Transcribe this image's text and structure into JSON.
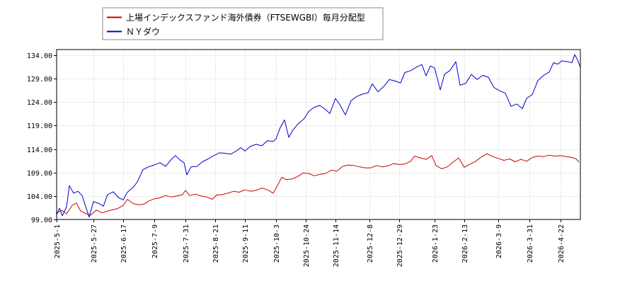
{
  "chart_data": {
    "type": "line",
    "legend": {
      "placement": "top-left",
      "entries": [
        {
          "name": "上場インデックスファンド海外債券（FTSEWGBI）毎月分配型",
          "color": "#cc0000"
        },
        {
          "name": "ＮＹダウ",
          "color": "#0000cc"
        }
      ]
    },
    "y_ticks": [
      "99.00",
      "104.00",
      "109.00",
      "114.00",
      "119.00",
      "124.00",
      "129.00",
      "134.00"
    ],
    "ylim": [
      99,
      135.2
    ],
    "x_ticks": [
      {
        "label": "2025-5-1",
        "date": "2025-05-01"
      },
      {
        "label": "2025-5-27",
        "date": "2025-05-27"
      },
      {
        "label": "2025-6-17",
        "date": "2025-06-17"
      },
      {
        "label": "2025-7-9",
        "date": "2025-07-09"
      },
      {
        "label": "2025-7-31",
        "date": "2025-07-31"
      },
      {
        "label": "2025-8-21",
        "date": "2025-08-21"
      },
      {
        "label": "2025-9-11",
        "date": "2025-09-11"
      },
      {
        "label": "2025-10-3",
        "date": "2025-10-03"
      },
      {
        "label": "2025-10-24",
        "date": "2025-10-24"
      },
      {
        "label": "2025-11-14",
        "date": "2025-11-14"
      },
      {
        "label": "2025-12-8",
        "date": "2025-12-08"
      },
      {
        "label": "2025-12-29",
        "date": "2025-12-29"
      },
      {
        "label": "2026-1-23",
        "date": "2026-01-23"
      },
      {
        "label": "2026-2-13",
        "date": "2026-02-13"
      },
      {
        "label": "2026-3-9",
        "date": "2026-03-09"
      },
      {
        "label": "2026-3-31",
        "date": "2026-03-31"
      },
      {
        "label": "2026-4-22",
        "date": "2026-04-22"
      }
    ],
    "xlim": [
      "2025-05-01",
      "2026-05-06"
    ],
    "grid": true,
    "series": [
      {
        "name": "上場インデックスファンド海外債券（FTSEWGBI）毎月分配型",
        "color": "#cc0000",
        "points": [
          [
            "2025-05-01",
            100.5
          ],
          [
            "2025-05-05",
            100.9
          ],
          [
            "2025-05-08",
            100.2
          ],
          [
            "2025-05-12",
            102.0
          ],
          [
            "2025-05-15",
            102.5
          ],
          [
            "2025-05-18",
            100.8
          ],
          [
            "2025-05-22",
            100.2
          ],
          [
            "2025-05-25",
            99.9
          ],
          [
            "2025-05-29",
            101.0
          ],
          [
            "2025-06-02",
            100.4
          ],
          [
            "2025-06-06",
            100.8
          ],
          [
            "2025-06-10",
            101.1
          ],
          [
            "2025-06-13",
            101.3
          ],
          [
            "2025-06-17",
            102.0
          ],
          [
            "2025-06-20",
            103.3
          ],
          [
            "2025-06-24",
            102.4
          ],
          [
            "2025-06-28",
            102.1
          ],
          [
            "2025-07-02",
            102.3
          ],
          [
            "2025-07-05",
            102.9
          ],
          [
            "2025-07-09",
            103.4
          ],
          [
            "2025-07-13",
            103.6
          ],
          [
            "2025-07-17",
            104.1
          ],
          [
            "2025-07-21",
            103.8
          ],
          [
            "2025-07-25",
            104.0
          ],
          [
            "2025-07-29",
            104.3
          ],
          [
            "2025-07-31",
            105.2
          ],
          [
            "2025-08-03",
            104.1
          ],
          [
            "2025-08-07",
            104.4
          ],
          [
            "2025-08-11",
            104.0
          ],
          [
            "2025-08-15",
            103.8
          ],
          [
            "2025-08-19",
            103.3
          ],
          [
            "2025-08-22",
            104.2
          ],
          [
            "2025-08-26",
            104.3
          ],
          [
            "2025-08-30",
            104.6
          ],
          [
            "2025-09-03",
            105.0
          ],
          [
            "2025-09-07",
            104.8
          ],
          [
            "2025-09-11",
            105.3
          ],
          [
            "2025-09-15",
            105.0
          ],
          [
            "2025-09-19",
            105.2
          ],
          [
            "2025-09-23",
            105.7
          ],
          [
            "2025-09-27",
            105.3
          ],
          [
            "2025-10-01",
            104.6
          ],
          [
            "2025-10-04",
            106.2
          ],
          [
            "2025-10-07",
            108.0
          ],
          [
            "2025-10-10",
            107.5
          ],
          [
            "2025-10-14",
            107.6
          ],
          [
            "2025-10-18",
            108.1
          ],
          [
            "2025-10-22",
            108.9
          ],
          [
            "2025-10-26",
            108.8
          ],
          [
            "2025-10-30",
            108.3
          ],
          [
            "2025-11-03",
            108.6
          ],
          [
            "2025-11-07",
            108.8
          ],
          [
            "2025-11-11",
            109.5
          ],
          [
            "2025-11-15",
            109.3
          ],
          [
            "2025-11-19",
            110.3
          ],
          [
            "2025-11-23",
            110.6
          ],
          [
            "2025-11-27",
            110.5
          ],
          [
            "2025-12-01",
            110.2
          ],
          [
            "2025-12-05",
            110.0
          ],
          [
            "2025-12-09",
            110.0
          ],
          [
            "2025-12-13",
            110.5
          ],
          [
            "2025-12-17",
            110.2
          ],
          [
            "2025-12-21",
            110.4
          ],
          [
            "2025-12-25",
            110.9
          ],
          [
            "2025-12-29",
            110.7
          ],
          [
            "2026-01-02",
            110.8
          ],
          [
            "2026-01-06",
            111.4
          ],
          [
            "2026-01-09",
            112.5
          ],
          [
            "2026-01-13",
            112.1
          ],
          [
            "2026-01-17",
            111.8
          ],
          [
            "2026-01-21",
            112.6
          ],
          [
            "2026-01-24",
            110.5
          ],
          [
            "2026-01-28",
            109.8
          ],
          [
            "2026-02-01",
            110.2
          ],
          [
            "2026-02-05",
            111.2
          ],
          [
            "2026-02-09",
            112.1
          ],
          [
            "2026-02-13",
            110.1
          ],
          [
            "2026-02-17",
            110.8
          ],
          [
            "2026-02-21",
            111.4
          ],
          [
            "2026-02-25",
            112.3
          ],
          [
            "2026-03-01",
            113.0
          ],
          [
            "2026-03-05",
            112.4
          ],
          [
            "2026-03-09",
            112.0
          ],
          [
            "2026-03-13",
            111.6
          ],
          [
            "2026-03-17",
            111.9
          ],
          [
            "2026-03-21",
            111.3
          ],
          [
            "2026-03-25",
            111.8
          ],
          [
            "2026-03-29",
            111.4
          ],
          [
            "2026-04-02",
            112.2
          ],
          [
            "2026-04-06",
            112.5
          ],
          [
            "2026-04-10",
            112.4
          ],
          [
            "2026-04-14",
            112.7
          ],
          [
            "2026-04-18",
            112.5
          ],
          [
            "2026-04-22",
            112.6
          ],
          [
            "2026-04-26",
            112.4
          ],
          [
            "2026-04-30",
            112.2
          ],
          [
            "2026-05-03",
            111.9
          ],
          [
            "2026-05-05",
            111.2
          ]
        ]
      },
      {
        "name": "ＮＹダウ",
        "color": "#0000cc",
        "points": [
          [
            "2025-05-01",
            100.0
          ],
          [
            "2025-05-03",
            101.4
          ],
          [
            "2025-05-05",
            99.8
          ],
          [
            "2025-05-08",
            101.7
          ],
          [
            "2025-05-10",
            106.2
          ],
          [
            "2025-05-13",
            104.6
          ],
          [
            "2025-05-16",
            105.0
          ],
          [
            "2025-05-19",
            104.1
          ],
          [
            "2025-05-22",
            101.3
          ],
          [
            "2025-05-24",
            99.5
          ],
          [
            "2025-05-27",
            102.8
          ],
          [
            "2025-05-31",
            102.4
          ],
          [
            "2025-06-03",
            101.8
          ],
          [
            "2025-06-06",
            104.3
          ],
          [
            "2025-06-10",
            104.9
          ],
          [
            "2025-06-14",
            103.6
          ],
          [
            "2025-06-17",
            103.2
          ],
          [
            "2025-06-20",
            104.8
          ],
          [
            "2025-06-24",
            105.8
          ],
          [
            "2025-06-27",
            107.0
          ],
          [
            "2025-07-01",
            109.6
          ],
          [
            "2025-07-05",
            110.2
          ],
          [
            "2025-07-09",
            110.6
          ],
          [
            "2025-07-13",
            111.1
          ],
          [
            "2025-07-17",
            110.3
          ],
          [
            "2025-07-21",
            111.8
          ],
          [
            "2025-07-24",
            112.6
          ],
          [
            "2025-07-27",
            111.7
          ],
          [
            "2025-07-30",
            111.1
          ],
          [
            "2025-08-01",
            108.5
          ],
          [
            "2025-08-04",
            110.2
          ],
          [
            "2025-08-08",
            110.3
          ],
          [
            "2025-08-12",
            111.3
          ],
          [
            "2025-08-16",
            111.9
          ],
          [
            "2025-08-20",
            112.6
          ],
          [
            "2025-08-24",
            113.2
          ],
          [
            "2025-08-28",
            113.1
          ],
          [
            "2025-09-01",
            112.9
          ],
          [
            "2025-09-05",
            113.6
          ],
          [
            "2025-09-08",
            114.3
          ],
          [
            "2025-09-11",
            113.6
          ],
          [
            "2025-09-15",
            114.6
          ],
          [
            "2025-09-19",
            115.0
          ],
          [
            "2025-09-23",
            114.7
          ],
          [
            "2025-09-27",
            115.8
          ],
          [
            "2025-10-01",
            115.6
          ],
          [
            "2025-10-03",
            116.2
          ],
          [
            "2025-10-06",
            118.6
          ],
          [
            "2025-10-09",
            120.2
          ],
          [
            "2025-10-12",
            116.5
          ],
          [
            "2025-10-15",
            118.1
          ],
          [
            "2025-10-19",
            119.5
          ],
          [
            "2025-10-23",
            120.5
          ],
          [
            "2025-10-26",
            122.0
          ],
          [
            "2025-10-30",
            122.9
          ],
          [
            "2025-11-03",
            123.3
          ],
          [
            "2025-11-07",
            122.4
          ],
          [
            "2025-11-10",
            121.6
          ],
          [
            "2025-11-14",
            124.8
          ],
          [
            "2025-11-17",
            123.5
          ],
          [
            "2025-11-21",
            121.3
          ],
          [
            "2025-11-25",
            124.3
          ],
          [
            "2025-11-29",
            125.2
          ],
          [
            "2025-12-03",
            125.7
          ],
          [
            "2025-12-07",
            126.0
          ],
          [
            "2025-12-10",
            127.9
          ],
          [
            "2025-12-14",
            126.2
          ],
          [
            "2025-12-18",
            127.3
          ],
          [
            "2025-12-22",
            128.8
          ],
          [
            "2025-12-26",
            128.5
          ],
          [
            "2025-12-30",
            128.1
          ],
          [
            "2026-01-02",
            130.3
          ],
          [
            "2026-01-06",
            130.7
          ],
          [
            "2026-01-10",
            131.4
          ],
          [
            "2026-01-14",
            132.0
          ],
          [
            "2026-01-17",
            129.6
          ],
          [
            "2026-01-20",
            131.7
          ],
          [
            "2026-01-23",
            131.3
          ],
          [
            "2026-01-27",
            126.6
          ],
          [
            "2026-01-30",
            129.9
          ],
          [
            "2026-02-03",
            130.8
          ],
          [
            "2026-02-07",
            132.6
          ],
          [
            "2026-02-10",
            127.6
          ],
          [
            "2026-02-14",
            128.0
          ],
          [
            "2026-02-18",
            129.9
          ],
          [
            "2026-02-22",
            128.8
          ],
          [
            "2026-02-26",
            129.7
          ],
          [
            "2026-03-02",
            129.3
          ],
          [
            "2026-03-06",
            127.1
          ],
          [
            "2026-03-10",
            126.4
          ],
          [
            "2026-03-14",
            125.9
          ],
          [
            "2026-03-18",
            123.1
          ],
          [
            "2026-03-22",
            123.6
          ],
          [
            "2026-03-26",
            122.6
          ],
          [
            "2026-03-29",
            124.8
          ],
          [
            "2026-04-02",
            125.6
          ],
          [
            "2026-04-06",
            128.6
          ],
          [
            "2026-04-10",
            129.7
          ],
          [
            "2026-04-14",
            130.4
          ],
          [
            "2026-04-17",
            132.4
          ],
          [
            "2026-04-20",
            132.1
          ],
          [
            "2026-04-23",
            132.8
          ],
          [
            "2026-04-27",
            132.6
          ],
          [
            "2026-04-30",
            132.4
          ],
          [
            "2026-05-02",
            134.1
          ],
          [
            "2026-05-04",
            133.0
          ],
          [
            "2026-05-06",
            131.4
          ]
        ]
      }
    ]
  }
}
